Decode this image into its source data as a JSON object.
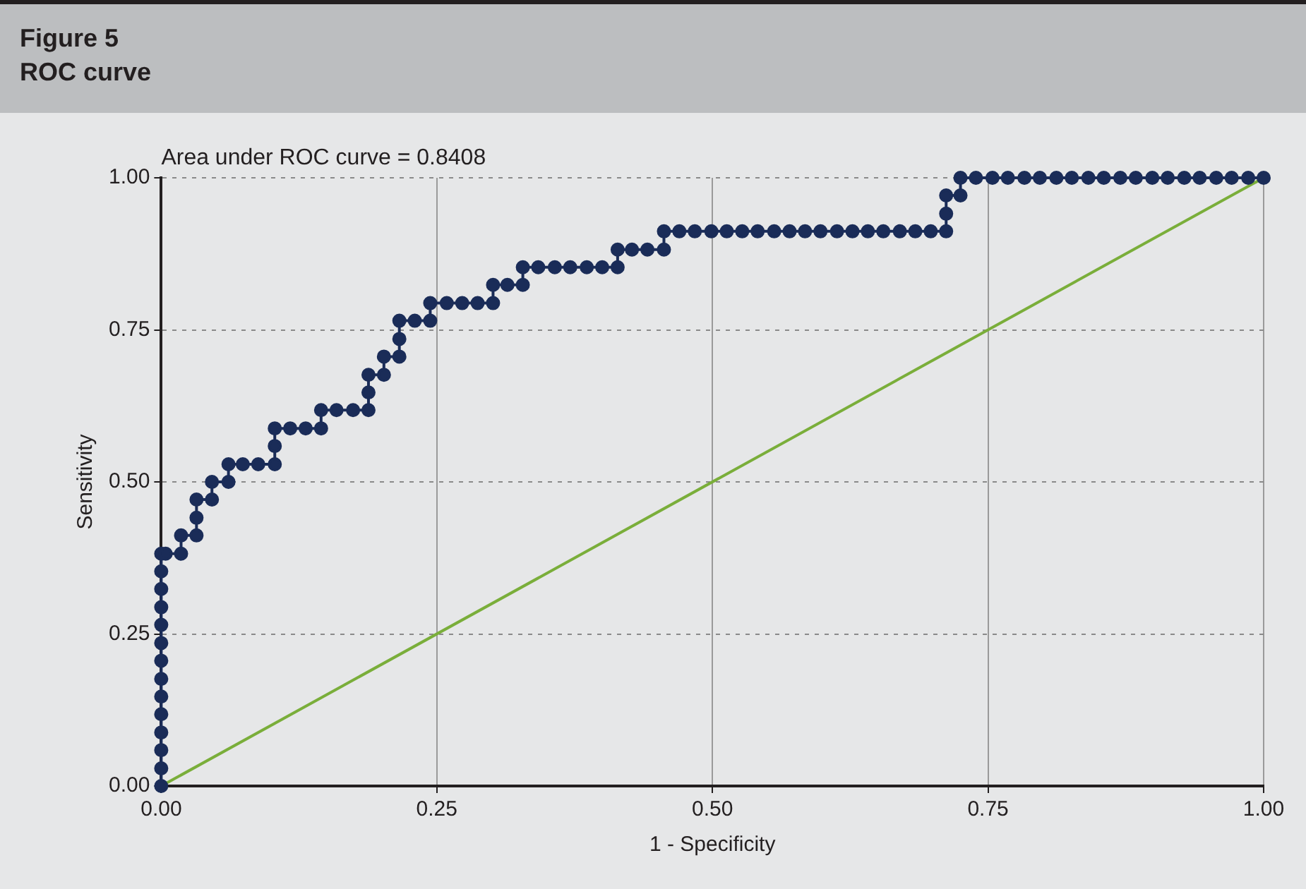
{
  "chart_data": {
    "type": "line",
    "title": "Figure 5",
    "subtitle": "ROC curve",
    "xlabel": "1 - Specificity",
    "ylabel": "Sensitivity",
    "annotations": [
      "Area under ROC curve = 0.8408"
    ],
    "xlim": [
      0,
      1
    ],
    "ylim": [
      0,
      1
    ],
    "xticks": [
      {
        "value": 0,
        "label": "0.00"
      },
      {
        "value": 0.25,
        "label": "0.25"
      },
      {
        "value": 0.5,
        "label": "0.50"
      },
      {
        "value": 0.75,
        "label": "0.75"
      },
      {
        "value": 1,
        "label": "1.00"
      }
    ],
    "yticks": [
      {
        "value": 0,
        "label": "0.00"
      },
      {
        "value": 0.25,
        "label": "0.25"
      },
      {
        "value": 0.5,
        "label": "0.50"
      },
      {
        "value": 0.75,
        "label": "0.75"
      },
      {
        "value": 1,
        "label": "1.00"
      }
    ],
    "grid": true,
    "legend": false,
    "series": [
      {
        "color": "#1a2c58",
        "marker": "circle",
        "x": [
          0,
          0,
          0,
          0,
          0,
          0,
          0,
          0,
          0,
          0,
          0,
          0,
          0,
          0,
          0.004,
          0.018,
          0.018,
          0.032,
          0.032,
          0.032,
          0.046,
          0.046,
          0.061,
          0.061,
          0.074,
          0.088,
          0.103,
          0.103,
          0.103,
          0.117,
          0.131,
          0.145,
          0.145,
          0.159,
          0.174,
          0.188,
          0.188,
          0.188,
          0.202,
          0.202,
          0.216,
          0.216,
          0.216,
          0.23,
          0.244,
          0.244,
          0.259,
          0.273,
          0.287,
          0.301,
          0.301,
          0.314,
          0.328,
          0.328,
          0.342,
          0.357,
          0.371,
          0.386,
          0.4,
          0.414,
          0.414,
          0.427,
          0.441,
          0.456,
          0.456,
          0.47,
          0.484,
          0.499,
          0.513,
          0.527,
          0.541,
          0.556,
          0.57,
          0.584,
          0.598,
          0.613,
          0.627,
          0.641,
          0.655,
          0.67,
          0.684,
          0.698,
          0.712,
          0.712,
          0.712,
          0.725,
          0.725,
          0.739,
          0.754,
          0.768,
          0.783,
          0.797,
          0.812,
          0.826,
          0.841,
          0.855,
          0.87,
          0.884,
          0.899,
          0.913,
          0.928,
          0.942,
          0.957,
          0.971,
          0.986,
          1.0
        ],
        "values": [
          0,
          0.029,
          0.059,
          0.088,
          0.118,
          0.147,
          0.176,
          0.206,
          0.235,
          0.265,
          0.294,
          0.324,
          0.353,
          0.382,
          0.382,
          0.382,
          0.412,
          0.412,
          0.441,
          0.471,
          0.471,
          0.5,
          0.5,
          0.529,
          0.529,
          0.529,
          0.529,
          0.559,
          0.588,
          0.588,
          0.588,
          0.588,
          0.618,
          0.618,
          0.618,
          0.618,
          0.647,
          0.676,
          0.676,
          0.706,
          0.706,
          0.735,
          0.765,
          0.765,
          0.765,
          0.794,
          0.794,
          0.794,
          0.794,
          0.794,
          0.824,
          0.824,
          0.824,
          0.853,
          0.853,
          0.853,
          0.853,
          0.853,
          0.853,
          0.853,
          0.882,
          0.882,
          0.882,
          0.882,
          0.912,
          0.912,
          0.912,
          0.912,
          0.912,
          0.912,
          0.912,
          0.912,
          0.912,
          0.912,
          0.912,
          0.912,
          0.912,
          0.912,
          0.912,
          0.912,
          0.912,
          0.912,
          0.912,
          0.941,
          0.971,
          0.971,
          1.0,
          1.0,
          1.0,
          1.0,
          1.0,
          1.0,
          1.0,
          1.0,
          1.0,
          1.0,
          1.0,
          1.0,
          1.0,
          1.0,
          1.0,
          1.0,
          1.0,
          1.0,
          1.0,
          1.0
        ]
      },
      {
        "color": "#7aae3a",
        "marker": "none",
        "x": [
          0,
          1
        ],
        "values": [
          0,
          1
        ]
      }
    ]
  }
}
